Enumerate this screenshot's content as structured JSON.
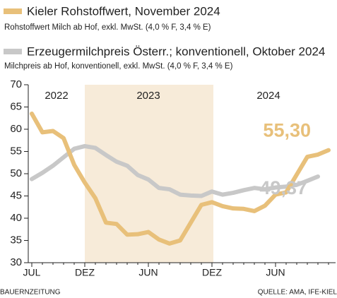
{
  "chart_data": {
    "type": "line",
    "categories": [
      "JUL",
      null,
      null,
      null,
      null,
      "DEZ",
      null,
      null,
      null,
      null,
      null,
      "JUN",
      null,
      null,
      null,
      null,
      null,
      "DEZ",
      null,
      null,
      null,
      null,
      null,
      "JUN",
      null,
      null,
      null,
      null,
      null
    ],
    "years": [
      "2022",
      "2023",
      "2024"
    ],
    "series": [
      {
        "name": "Kieler Rohstoffwert, November 2024",
        "description": "Rohstoffwert Milch ab Hof, exkl. MwSt. (4,0 % F, 3,4 % E)",
        "color": "#e8c07a",
        "values": [
          63.5,
          59.3,
          59.6,
          58,
          52,
          48,
          44.5,
          39,
          38.7,
          36.3,
          36.4,
          36.9,
          35.2,
          34.3,
          35,
          39,
          43,
          43.6,
          42.7,
          42.2,
          42.1,
          41.6,
          42.8,
          45.3,
          45.8,
          49.8,
          53.8,
          54.3,
          55.3
        ],
        "value_labels": [
          null,
          null,
          null,
          null,
          null,
          null,
          null,
          null,
          null,
          null,
          null,
          null,
          null,
          null,
          null,
          null,
          null,
          null,
          null,
          null,
          null,
          null,
          null,
          null,
          null,
          null,
          null,
          null,
          "55,30"
        ]
      },
      {
        "name": "Erzeugermilchpreis Österr.; konventionell, Oktober 2024",
        "description": "Milchpreis ab Hof, konventionell, exkl. MwSt. (4,0 % F, 3,4 % E)",
        "color": "#c8c8c8",
        "values": [
          48.8,
          50.2,
          51.8,
          53.7,
          55.6,
          56.2,
          55.8,
          54.2,
          52.7,
          51.8,
          49.7,
          48.7,
          46.8,
          46.5,
          45.3,
          45.1,
          45.0,
          46.0,
          45.3,
          45.7,
          46.3,
          46.8,
          46.5,
          46.9,
          47.1,
          47.5,
          48.4,
          49.37,
          null
        ],
        "value_labels": [
          null,
          null,
          null,
          null,
          null,
          null,
          null,
          null,
          null,
          null,
          null,
          null,
          null,
          null,
          null,
          null,
          null,
          null,
          null,
          null,
          null,
          null,
          null,
          null,
          null,
          null,
          null,
          "49,37",
          null
        ]
      }
    ],
    "ylim": [
      30,
      70
    ],
    "yticks": [
      30,
      35,
      40,
      45,
      50,
      55,
      60,
      65,
      70
    ],
    "source_left": "BAUERNZEITUNG",
    "source_right": "QUELLE: AMA, IFE-KIEL"
  }
}
